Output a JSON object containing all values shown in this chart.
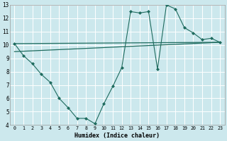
{
  "xlabel": "Humidex (Indice chaleur)",
  "bg_color": "#cce8ed",
  "grid_color": "#ffffff",
  "line_color": "#1e6b5e",
  "xlim": [
    -0.5,
    23.5
  ],
  "ylim": [
    4,
    13
  ],
  "xticks": [
    0,
    1,
    2,
    3,
    4,
    5,
    6,
    7,
    8,
    9,
    10,
    11,
    12,
    13,
    14,
    15,
    16,
    17,
    18,
    19,
    20,
    21,
    22,
    23
  ],
  "yticks": [
    4,
    5,
    6,
    7,
    8,
    9,
    10,
    11,
    12,
    13
  ],
  "main_x": [
    0,
    1,
    2,
    3,
    4,
    5,
    6,
    7,
    8,
    9,
    10,
    11,
    12,
    13,
    14,
    15,
    16,
    17,
    18,
    19,
    20,
    21,
    22,
    23
  ],
  "main_y": [
    10.1,
    9.2,
    8.6,
    7.8,
    7.2,
    6.0,
    5.3,
    4.5,
    4.5,
    4.1,
    5.6,
    6.9,
    8.3,
    12.5,
    12.4,
    12.5,
    8.2,
    13.0,
    12.7,
    11.3,
    10.9,
    10.4,
    10.5,
    10.2
  ],
  "trend1_x": [
    0,
    23
  ],
  "trend1_y": [
    10.1,
    10.2
  ],
  "trend2_x": [
    0,
    23
  ],
  "trend2_y": [
    9.5,
    10.2
  ]
}
